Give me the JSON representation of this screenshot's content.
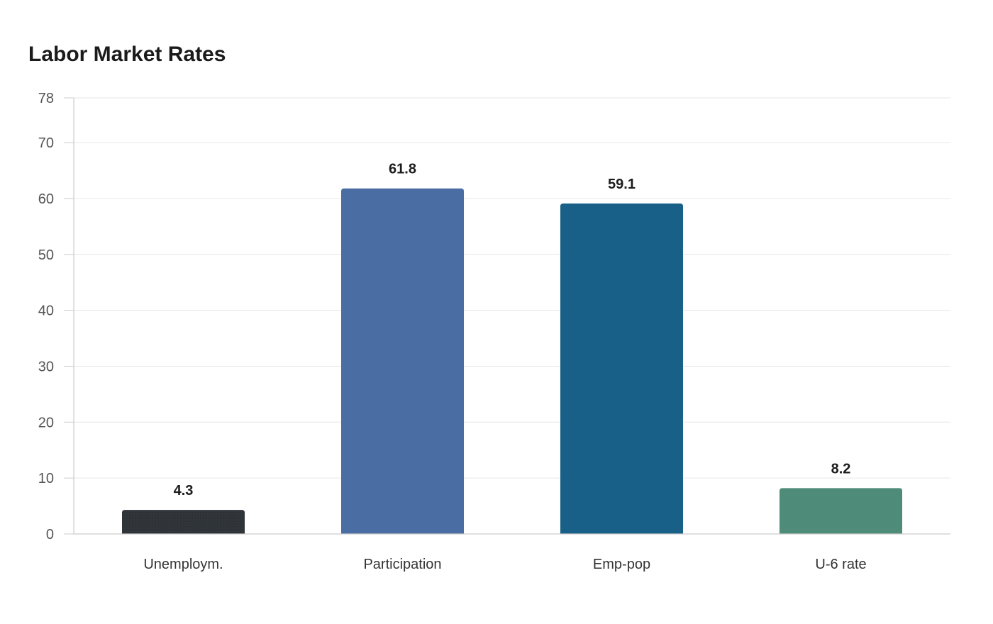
{
  "chart_data": {
    "type": "bar",
    "title": "Labor Market Rates",
    "xlabel": "",
    "ylabel": "",
    "categories": [
      "Unemploym.",
      "Participation",
      "Emp-pop",
      "U-6 rate"
    ],
    "values": [
      4.3,
      61.8,
      59.1,
      8.2
    ],
    "colors": [
      "#2e3338",
      "#4a6da3",
      "#186088",
      "#4e8c79"
    ],
    "ylim": [
      0,
      78
    ],
    "yticks": [
      0,
      10,
      20,
      30,
      40,
      50,
      60,
      70,
      78
    ],
    "grid": true,
    "legend": "none",
    "data_labels": true
  }
}
